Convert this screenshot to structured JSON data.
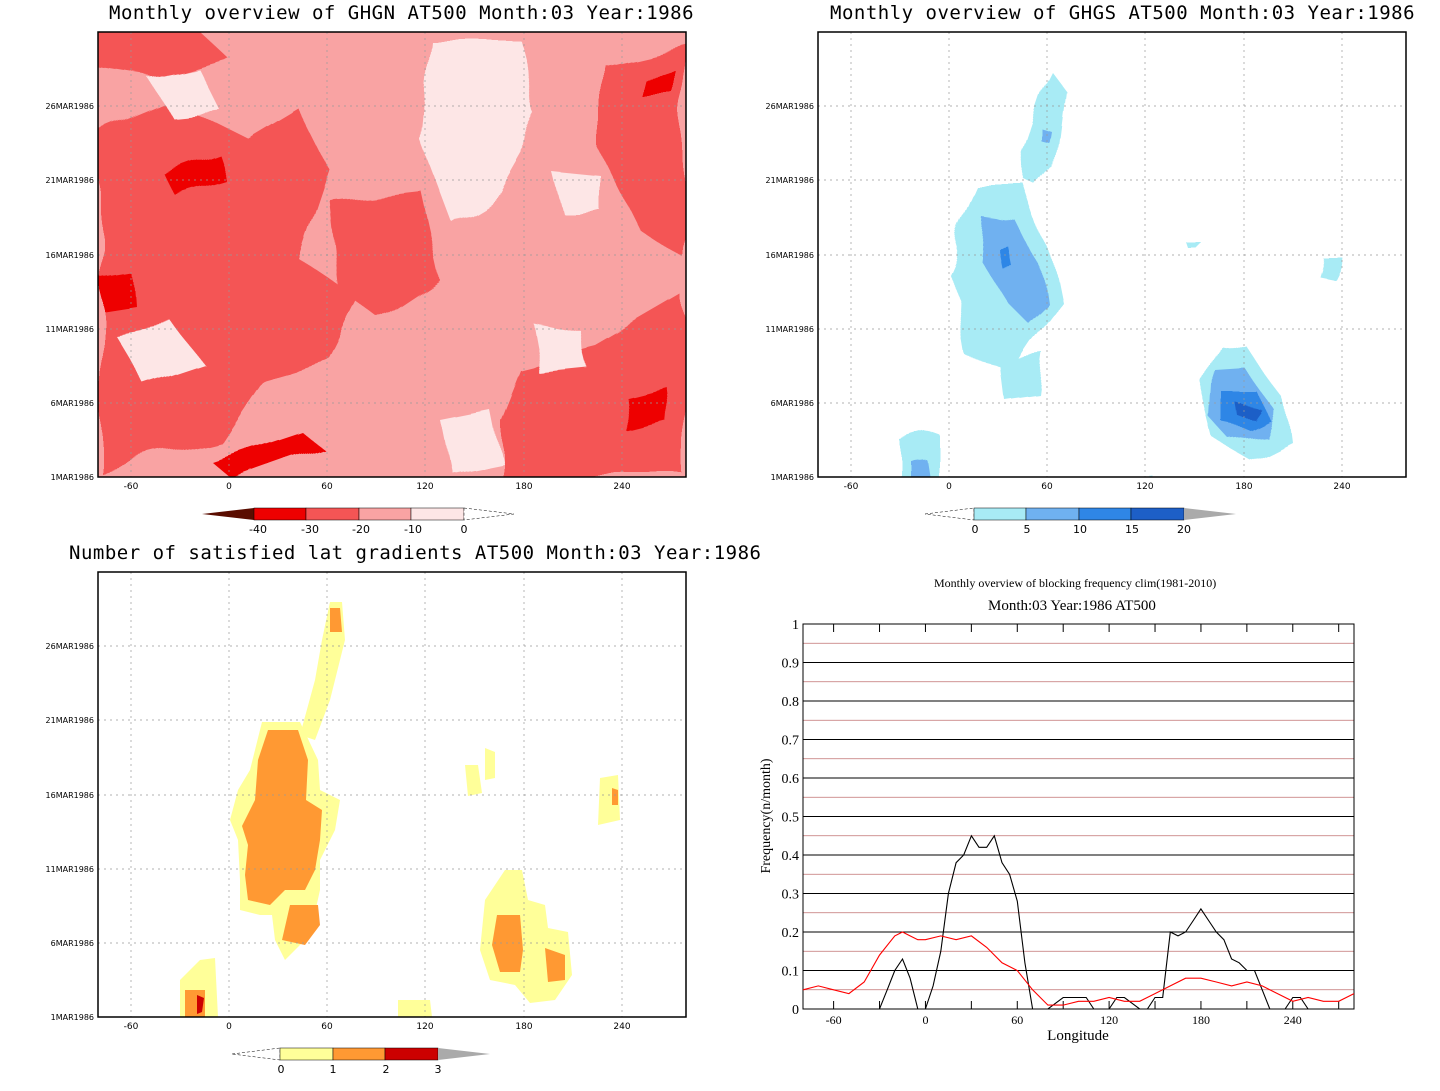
{
  "panels": {
    "ghgn": {
      "title": "Monthly overview of GHGN AT500 Month:03 Year:1986",
      "colorbar_labels": [
        "-40",
        "-30",
        "-20",
        "-10",
        "0"
      ],
      "colors": [
        "#5a0d00",
        "#ee0000",
        "#f45555",
        "#f9a3a3",
        "#fde6e6"
      ]
    },
    "ghgs": {
      "title": "Monthly overview of GHGS AT500 Month:03 Year:1986",
      "colorbar_labels": [
        "0",
        "5",
        "10",
        "15",
        "20"
      ],
      "colors": [
        "#a8ebf5",
        "#6fb1f0",
        "#2f86e6",
        "#1d5fc7",
        "#aaaaaa"
      ]
    },
    "gradients": {
      "title": "Number of satisfied lat gradients AT500 Month:03 Year:1986",
      "colorbar_labels": [
        "0",
        "1",
        "2",
        "3"
      ],
      "colors": [
        "#ffff99",
        "#ff9933",
        "#cc0000",
        "#aaaaaa"
      ]
    }
  },
  "hovmoller_axes": {
    "x_ticks": [
      "-60",
      "0",
      "60",
      "120",
      "180",
      "240"
    ],
    "y_ticks": [
      "26MAR1986",
      "21MAR1986",
      "16MAR1986",
      "11MAR1986",
      "6MAR1986",
      "1MAR1986"
    ]
  },
  "chart_data": {
    "type": "line",
    "title": "Monthly overview of blocking frequency clim(1981-2010)",
    "subtitle": "Month:03 Year:1986  AT500",
    "xlabel": "Longitude",
    "ylabel": "Frequency(n/month)",
    "xlim": [
      -80,
      280
    ],
    "ylim": [
      0,
      1
    ],
    "x_ticks": [
      "-60",
      "0",
      "60",
      "120",
      "180",
      "240"
    ],
    "y_ticks": [
      "0",
      "0.1",
      "0.2",
      "0.3",
      "0.4",
      "0.5",
      "0.6",
      "0.7",
      "0.8",
      "0.9",
      "1"
    ],
    "series": [
      {
        "color": "#000000",
        "x": [
          -80,
          -30,
          -25,
          -20,
          -15,
          -10,
          -5,
          0,
          5,
          10,
          15,
          20,
          25,
          30,
          35,
          40,
          45,
          50,
          55,
          60,
          65,
          70,
          75,
          80,
          90,
          100,
          105,
          110,
          120,
          125,
          130,
          140,
          145,
          150,
          155,
          160,
          165,
          170,
          175,
          180,
          185,
          190,
          195,
          200,
          205,
          210,
          215,
          220,
          225,
          230,
          235,
          240,
          245,
          250,
          255,
          260,
          265,
          270,
          275,
          280
        ],
        "y": [
          0,
          0,
          0.05,
          0.1,
          0.13,
          0.08,
          0,
          0,
          0.06,
          0.15,
          0.3,
          0.38,
          0.4,
          0.45,
          0.42,
          0.42,
          0.45,
          0.38,
          0.35,
          0.28,
          0.12,
          0,
          0,
          0,
          0.03,
          0.03,
          0.03,
          0,
          0,
          0.03,
          0.03,
          0,
          0,
          0.03,
          0.03,
          0.2,
          0.19,
          0.2,
          0.23,
          0.26,
          0.23,
          0.2,
          0.18,
          0.13,
          0.12,
          0.1,
          0.1,
          0.05,
          0,
          0,
          0,
          0.03,
          0.03,
          0,
          0,
          0,
          0,
          0,
          0,
          0
        ]
      },
      {
        "color": "#ff0000",
        "x": [
          -80,
          -70,
          -60,
          -50,
          -40,
          -30,
          -20,
          -15,
          -10,
          -5,
          0,
          10,
          20,
          30,
          40,
          50,
          60,
          70,
          80,
          90,
          100,
          110,
          120,
          130,
          140,
          150,
          160,
          170,
          180,
          190,
          200,
          210,
          220,
          230,
          240,
          250,
          260,
          270,
          280
        ],
        "y": [
          0.05,
          0.06,
          0.05,
          0.04,
          0.07,
          0.14,
          0.19,
          0.2,
          0.19,
          0.18,
          0.18,
          0.19,
          0.18,
          0.19,
          0.16,
          0.12,
          0.1,
          0.05,
          0.01,
          0.01,
          0.02,
          0.02,
          0.03,
          0.02,
          0.02,
          0.04,
          0.06,
          0.08,
          0.08,
          0.07,
          0.06,
          0.07,
          0.06,
          0.04,
          0.02,
          0.03,
          0.02,
          0.02,
          0.04
        ]
      }
    ]
  }
}
